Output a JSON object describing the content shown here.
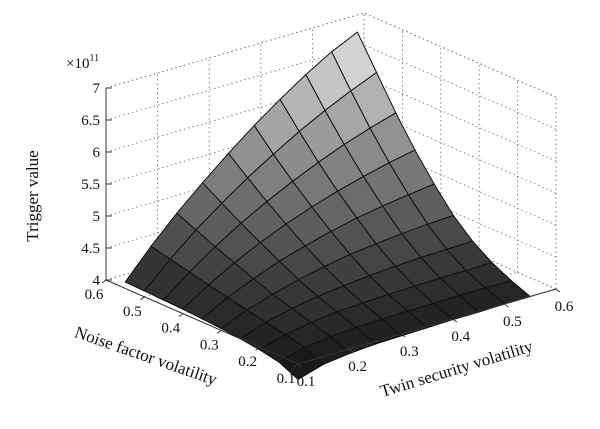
{
  "chart_data": {
    "type": "surface",
    "zlabel": "Trigger value",
    "xlabel": "Twin security volatility",
    "ylabel": "Noise factor volatility",
    "z_exponent_label": "×10",
    "z_exponent_power": "11",
    "x_ticks": [
      "0.1",
      "0.2",
      "0.3",
      "0.4",
      "0.5",
      "0.6"
    ],
    "y_ticks": [
      "0.1",
      "0.2",
      "0.3",
      "0.4",
      "0.5",
      "0.6"
    ],
    "z_ticks": [
      "4",
      "4.5",
      "5",
      "5.5",
      "6",
      "6.5",
      "7"
    ],
    "xlim": [
      0.1,
      0.6
    ],
    "ylim": [
      0.1,
      0.6
    ],
    "zlim": [
      4,
      7
    ],
    "grid": true,
    "colormap": "gray",
    "x": [
      0.1,
      0.15,
      0.2,
      0.25,
      0.3,
      0.35,
      0.4,
      0.45,
      0.5,
      0.55
    ],
    "y": [
      0.1,
      0.15,
      0.2,
      0.25,
      0.3,
      0.35,
      0.4,
      0.45,
      0.5,
      0.55
    ],
    "z_scale": 100000000000.0,
    "z": [
      [
        3.76,
        3.88,
        3.93,
        3.96,
        3.97,
        3.98,
        3.99,
        3.99,
        4.0,
        4.0
      ],
      [
        3.9,
        4.01,
        4.06,
        4.09,
        4.1,
        4.11,
        4.11,
        4.12,
        4.12,
        4.12
      ],
      [
        3.96,
        4.08,
        4.15,
        4.2,
        4.22,
        4.24,
        4.25,
        4.26,
        4.26,
        4.27
      ],
      [
        4.0,
        4.14,
        4.24,
        4.31,
        4.36,
        4.4,
        4.43,
        4.45,
        4.46,
        4.47
      ],
      [
        4.03,
        4.2,
        4.33,
        4.44,
        4.53,
        4.6,
        4.65,
        4.69,
        4.72,
        4.74
      ],
      [
        4.05,
        4.27,
        4.44,
        4.6,
        4.72,
        4.83,
        4.92,
        4.99,
        5.05,
        5.1
      ],
      [
        4.07,
        4.33,
        4.56,
        4.76,
        4.93,
        5.08,
        5.21,
        5.32,
        5.42,
        5.5
      ],
      [
        4.08,
        4.4,
        4.68,
        4.93,
        5.15,
        5.35,
        5.53,
        5.69,
        5.83,
        5.95
      ],
      [
        4.09,
        4.47,
        4.81,
        5.11,
        5.39,
        5.64,
        5.88,
        6.09,
        6.28,
        6.45
      ],
      [
        4.1,
        4.54,
        4.94,
        5.3,
        5.64,
        5.96,
        6.25,
        6.52,
        6.76,
        6.95
      ]
    ]
  }
}
